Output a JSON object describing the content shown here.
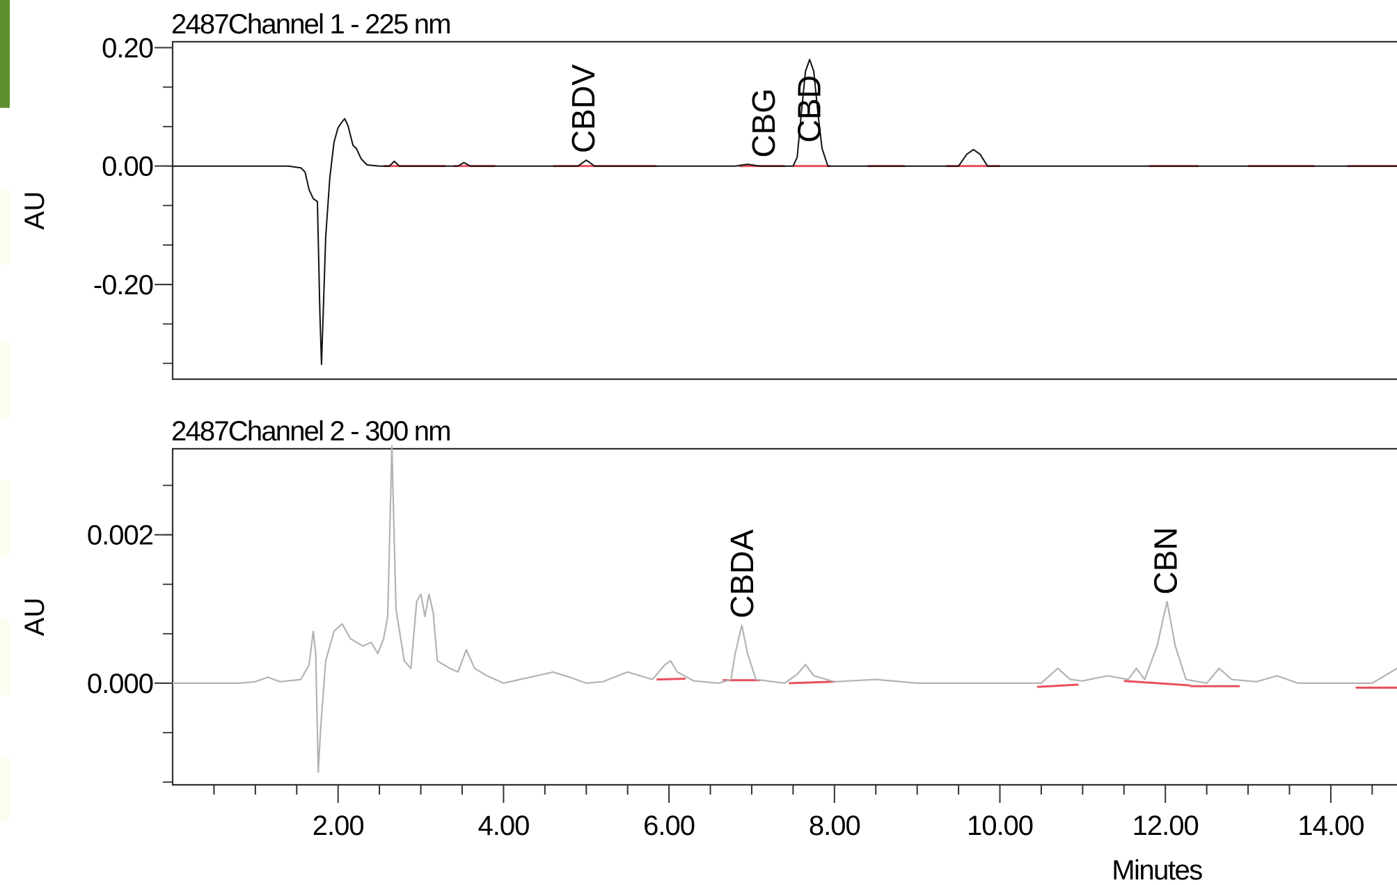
{
  "colors": {
    "axis": "#333333",
    "trace1": "#111111",
    "trace2": "#b3b3b3",
    "baseline": "#e8505b",
    "edge_green": "#5e8f2f"
  },
  "x_axis": {
    "label": "Minutes",
    "ticks": [
      "2.00",
      "4.00",
      "6.00",
      "8.00",
      "10.00",
      "12.00",
      "14.00"
    ]
  },
  "chart_data": [
    {
      "type": "line",
      "title": "2487Channel 1 - 225 nm",
      "ylabel": "AU",
      "xlim": [
        0,
        14.8
      ],
      "ylim": [
        -0.36,
        0.21
      ],
      "yticks": [
        0.2,
        0.0,
        -0.2
      ],
      "ytick_labels": [
        "0.20",
        "0.00",
        "-0.20"
      ],
      "grid": false,
      "series": [
        {
          "points": [
            [
              0,
              0.0
            ],
            [
              1.4,
              0.0
            ],
            [
              1.55,
              -0.003
            ],
            [
              1.6,
              -0.01
            ],
            [
              1.65,
              -0.04
            ],
            [
              1.7,
              -0.055
            ],
            [
              1.75,
              -0.06
            ],
            [
              1.78,
              -0.25
            ],
            [
              1.8,
              -0.335
            ],
            [
              1.82,
              -0.25
            ],
            [
              1.85,
              -0.12
            ],
            [
              1.9,
              -0.02
            ],
            [
              1.95,
              0.04
            ],
            [
              2.0,
              0.065
            ],
            [
              2.05,
              0.075
            ],
            [
              2.08,
              0.08
            ],
            [
              2.12,
              0.068
            ],
            [
              2.18,
              0.035
            ],
            [
              2.22,
              0.03
            ],
            [
              2.28,
              0.012
            ],
            [
              2.35,
              0.002
            ],
            [
              2.5,
              0.0
            ],
            [
              2.62,
              0.0
            ],
            [
              2.68,
              0.008
            ],
            [
              2.74,
              0.0
            ],
            [
              3.45,
              0.0
            ],
            [
              3.52,
              0.006
            ],
            [
              3.6,
              0.0
            ],
            [
              4.9,
              0.0
            ],
            [
              5.0,
              0.01
            ],
            [
              5.1,
              0.0
            ],
            [
              6.8,
              0.0
            ],
            [
              6.95,
              0.003
            ],
            [
              7.1,
              0.0
            ],
            [
              7.5,
              0.0
            ],
            [
              7.55,
              0.015
            ],
            [
              7.6,
              0.09
            ],
            [
              7.65,
              0.16
            ],
            [
              7.7,
              0.18
            ],
            [
              7.75,
              0.16
            ],
            [
              7.8,
              0.09
            ],
            [
              7.85,
              0.03
            ],
            [
              7.92,
              0.0
            ],
            [
              9.5,
              0.0
            ],
            [
              9.6,
              0.02
            ],
            [
              9.68,
              0.028
            ],
            [
              9.76,
              0.02
            ],
            [
              9.85,
              0.0
            ],
            [
              14.8,
              0.0
            ]
          ]
        }
      ],
      "annotations": [
        {
          "text": "CBDV",
          "x": 4.98
        },
        {
          "text": "CBG",
          "x": 7.16
        },
        {
          "text": "CBD",
          "x": 7.71
        }
      ],
      "integration_baselines": [
        [
          [
            2.55,
            0.0
          ],
          [
            3.3,
            0.0
          ]
        ],
        [
          [
            3.4,
            0.0
          ],
          [
            3.9,
            0.0
          ]
        ],
        [
          [
            4.6,
            0.0
          ],
          [
            5.4,
            0.0
          ]
        ],
        [
          [
            5.4,
            0.0
          ],
          [
            5.85,
            0.0
          ]
        ],
        [
          [
            6.85,
            0.0
          ],
          [
            7.4,
            0.0
          ]
        ],
        [
          [
            7.5,
            0.0
          ],
          [
            7.95,
            0.0
          ]
        ],
        [
          [
            8.4,
            0.0
          ],
          [
            8.85,
            0.0
          ]
        ],
        [
          [
            9.35,
            0.0
          ],
          [
            10.0,
            0.0
          ]
        ],
        [
          [
            11.8,
            0.0
          ],
          [
            12.4,
            0.0
          ]
        ],
        [
          [
            13.0,
            0.0
          ],
          [
            13.8,
            0.0
          ]
        ],
        [
          [
            14.2,
            0.0
          ],
          [
            14.8,
            0.0
          ]
        ]
      ]
    },
    {
      "type": "line",
      "title": "2487Channel 2 - 300 nm",
      "ylabel": "AU",
      "xlim": [
        0,
        14.8
      ],
      "ylim": [
        -0.00137,
        0.00316
      ],
      "yticks": [
        0.002,
        0.0
      ],
      "ytick_labels": [
        "0.002",
        "0.000"
      ],
      "grid": false,
      "series": [
        {
          "points": [
            [
              0,
              0.0
            ],
            [
              0.8,
              0.0
            ],
            [
              1.0,
              2e-05
            ],
            [
              1.15,
              8e-05
            ],
            [
              1.3,
              2e-05
            ],
            [
              1.55,
              5e-05
            ],
            [
              1.65,
              0.00025
            ],
            [
              1.7,
              0.0007
            ],
            [
              1.73,
              0.0004
            ],
            [
              1.76,
              -0.0012
            ],
            [
              1.79,
              -0.0006
            ],
            [
              1.85,
              0.0003
            ],
            [
              1.95,
              0.0007
            ],
            [
              2.05,
              0.0008
            ],
            [
              2.15,
              0.0006
            ],
            [
              2.3,
              0.0005
            ],
            [
              2.4,
              0.00055
            ],
            [
              2.48,
              0.0004
            ],
            [
              2.55,
              0.0006
            ],
            [
              2.6,
              0.0009
            ],
            [
              2.65,
              0.0032
            ],
            [
              2.7,
              0.001
            ],
            [
              2.8,
              0.0003
            ],
            [
              2.88,
              0.0002
            ],
            [
              2.95,
              0.0011
            ],
            [
              3.0,
              0.0012
            ],
            [
              3.05,
              0.0009
            ],
            [
              3.1,
              0.0012
            ],
            [
              3.15,
              0.00095
            ],
            [
              3.2,
              0.0003
            ],
            [
              3.35,
              0.0002
            ],
            [
              3.45,
              0.00015
            ],
            [
              3.55,
              0.00045
            ],
            [
              3.65,
              0.0002
            ],
            [
              3.8,
              0.0001
            ],
            [
              4.0,
              0.0
            ],
            [
              4.2,
              5e-05
            ],
            [
              4.4,
              0.0001
            ],
            [
              4.6,
              0.00015
            ],
            [
              4.8,
              8e-05
            ],
            [
              5.0,
              0.0
            ],
            [
              5.2,
              2e-05
            ],
            [
              5.5,
              0.00015
            ],
            [
              5.8,
              5e-05
            ],
            [
              5.95,
              0.00025
            ],
            [
              6.02,
              0.0003
            ],
            [
              6.1,
              0.00015
            ],
            [
              6.3,
              3e-05
            ],
            [
              6.6,
              0.0
            ],
            [
              6.75,
              5e-05
            ],
            [
              6.8,
              0.0004
            ],
            [
              6.88,
              0.00078
            ],
            [
              6.95,
              0.0004
            ],
            [
              7.05,
              5e-05
            ],
            [
              7.4,
              0.0
            ],
            [
              7.55,
              0.00012
            ],
            [
              7.65,
              0.00025
            ],
            [
              7.75,
              0.0001
            ],
            [
              8.0,
              2e-05
            ],
            [
              8.5,
              5e-05
            ],
            [
              9.0,
              0.0
            ],
            [
              10.0,
              0.0
            ],
            [
              10.5,
              0.0
            ],
            [
              10.7,
              0.0002
            ],
            [
              10.85,
              5e-05
            ],
            [
              11.0,
              3e-05
            ],
            [
              11.3,
              0.0001
            ],
            [
              11.55,
              5e-05
            ],
            [
              11.65,
              0.0002
            ],
            [
              11.75,
              5e-05
            ],
            [
              11.9,
              0.0005
            ],
            [
              12.02,
              0.0011
            ],
            [
              12.12,
              0.0005
            ],
            [
              12.25,
              5e-05
            ],
            [
              12.5,
              0.0
            ],
            [
              12.65,
              0.0002
            ],
            [
              12.8,
              5e-05
            ],
            [
              13.1,
              2e-05
            ],
            [
              13.35,
              0.0001
            ],
            [
              13.6,
              0.0
            ],
            [
              14.2,
              0.0
            ],
            [
              14.5,
              0.0
            ],
            [
              14.65,
              0.0001
            ],
            [
              14.8,
              0.0002
            ]
          ]
        }
      ],
      "annotations": [
        {
          "text": "CBDA",
          "x": 6.9
        },
        {
          "text": "CBN",
          "x": 12.02
        }
      ],
      "integration_baselines": [
        [
          [
            5.85,
            5e-05
          ],
          [
            6.2,
            6e-05
          ]
        ],
        [
          [
            6.65,
            4e-05
          ],
          [
            7.1,
            4e-05
          ]
        ],
        [
          [
            7.45,
            0.0
          ],
          [
            8.0,
            2e-05
          ]
        ],
        [
          [
            10.45,
            -5e-05
          ],
          [
            10.95,
            -2e-05
          ]
        ],
        [
          [
            11.5,
            3e-05
          ],
          [
            12.3,
            -3e-05
          ]
        ],
        [
          [
            12.3,
            -4e-05
          ],
          [
            12.9,
            -4e-05
          ]
        ],
        [
          [
            14.3,
            -6e-05
          ],
          [
            14.8,
            -6e-05
          ]
        ]
      ]
    }
  ]
}
